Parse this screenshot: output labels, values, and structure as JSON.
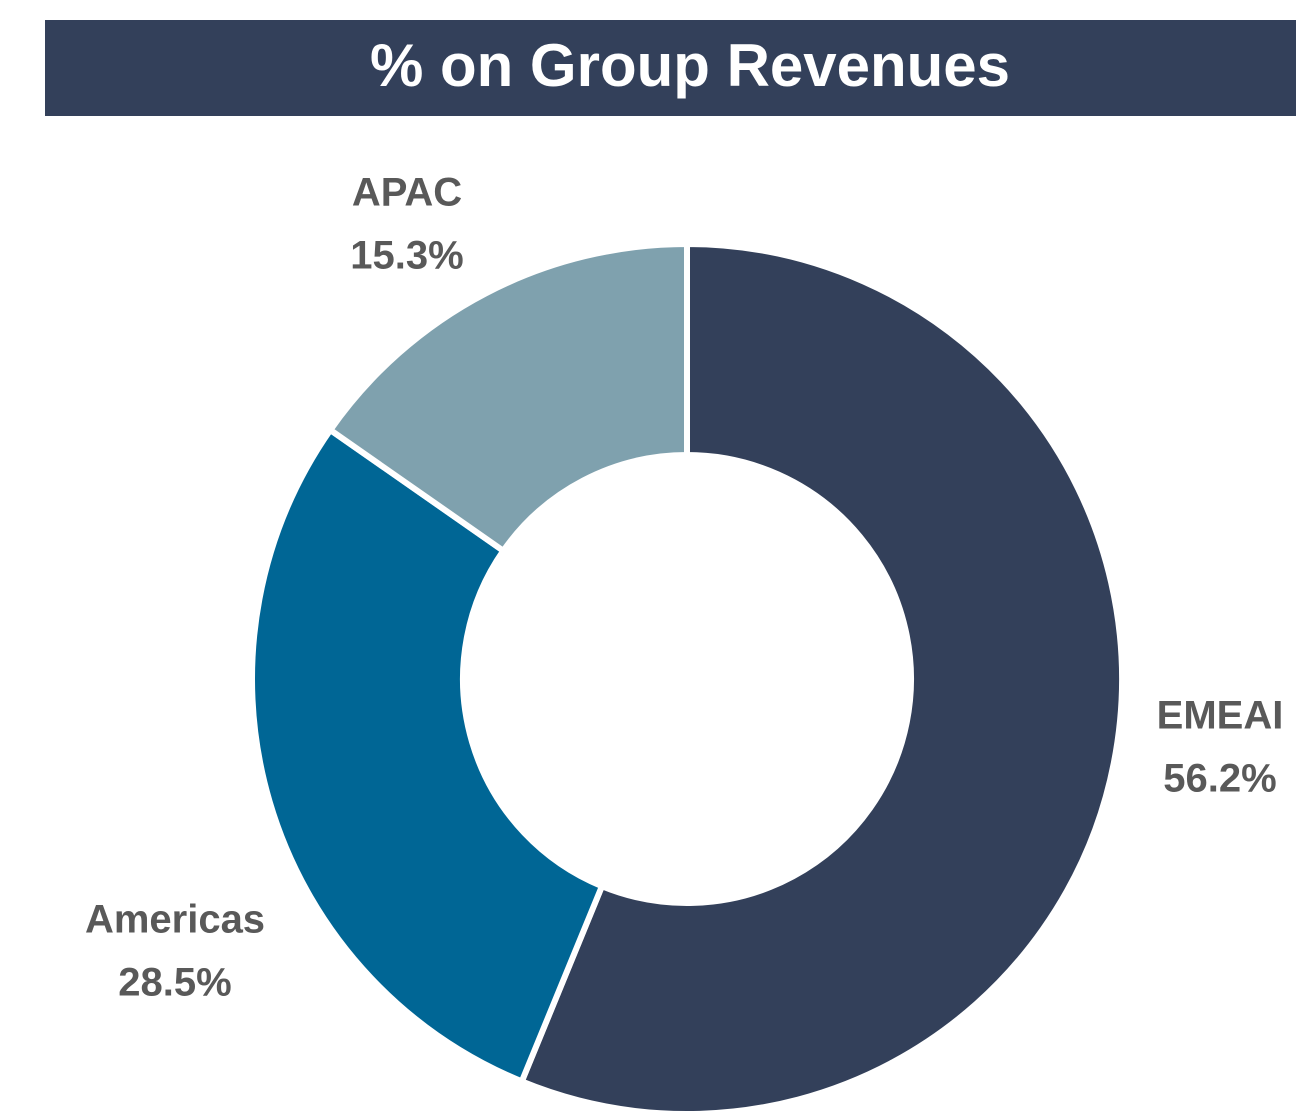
{
  "chart_data": {
    "type": "donut",
    "title": "% on Group Revenues",
    "categories": [
      "EMEAI",
      "Americas",
      "APAC"
    ],
    "values": [
      56.2,
      28.5,
      15.3
    ],
    "value_labels": [
      "56.2%",
      "28.5%",
      "15.3%"
    ],
    "colors": [
      "#33405a",
      "#006695",
      "#7fa1ae"
    ]
  }
}
